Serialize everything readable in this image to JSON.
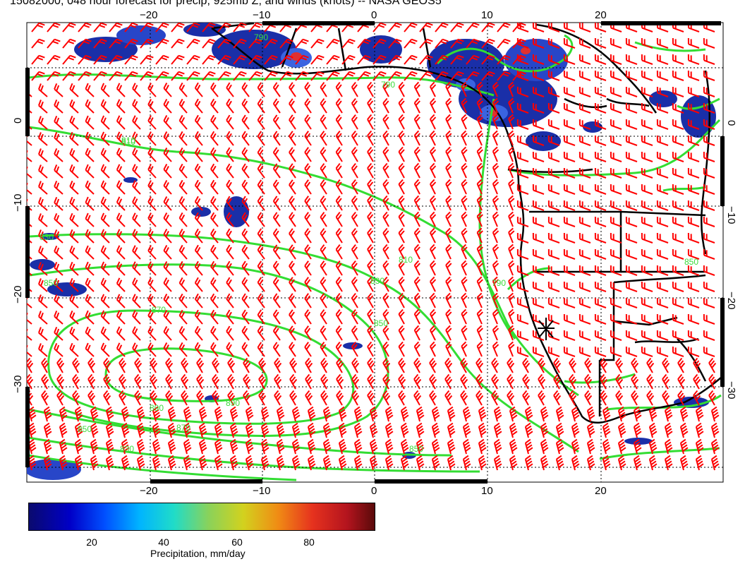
{
  "title": "15082000, 048 hour forecast for precip, 925mb Z, and winds (knots) -- NASA GEOS5",
  "map": {
    "x_ticks_top": [
      "−20",
      "−10",
      "0",
      "10",
      "20"
    ],
    "x_ticks_bottom": [
      "−20",
      "−10",
      "0",
      "10",
      "20"
    ],
    "y_ticks_left": [
      "0",
      "−10",
      "−20",
      "−30"
    ],
    "y_ticks_right": [
      "0",
      "−10",
      "−20",
      "−30"
    ],
    "contour_labels": [
      "790",
      "810",
      "830",
      "850",
      "870",
      "890",
      "850",
      "830",
      "810",
      "790",
      "830",
      "850",
      "870",
      "890",
      "850",
      "790",
      "810",
      "850"
    ],
    "colors": {
      "wind_barb": "#ff0000",
      "contour": "#33dd33",
      "coastline": "#000000",
      "grid": "#000000"
    },
    "icons": [
      "wind-barb-icon",
      "star-marker-icon"
    ]
  },
  "colorbar": {
    "ticks": [
      "20",
      "40",
      "60",
      "80"
    ],
    "label": "Precipitation, mm/day"
  }
}
